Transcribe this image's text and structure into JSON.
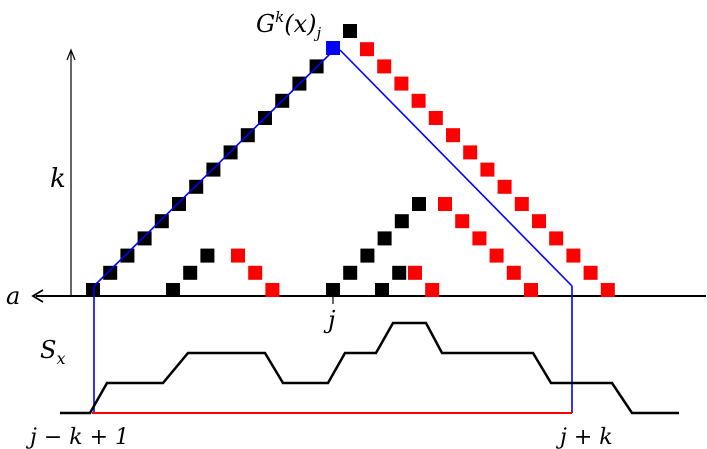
{
  "labels": {
    "top": "G^k(x)_j",
    "vertical_axis": "k",
    "horizontal_axis": "a",
    "j": "j",
    "s": "S_x",
    "left_end": "j − k + 1",
    "right_end": "j + k"
  },
  "colors": {
    "black_cell": "#000000",
    "red_cell": "#ff0000",
    "blue_cell": "#0000ff",
    "blue_line": "#0000ff",
    "red_line": "#ff0000",
    "profile": "#000000",
    "axis": "#000000"
  },
  "icons": {
    "axis_up_arrow": "arrow-up-icon",
    "axis_left_arrow": "arrow-left-icon"
  }
}
